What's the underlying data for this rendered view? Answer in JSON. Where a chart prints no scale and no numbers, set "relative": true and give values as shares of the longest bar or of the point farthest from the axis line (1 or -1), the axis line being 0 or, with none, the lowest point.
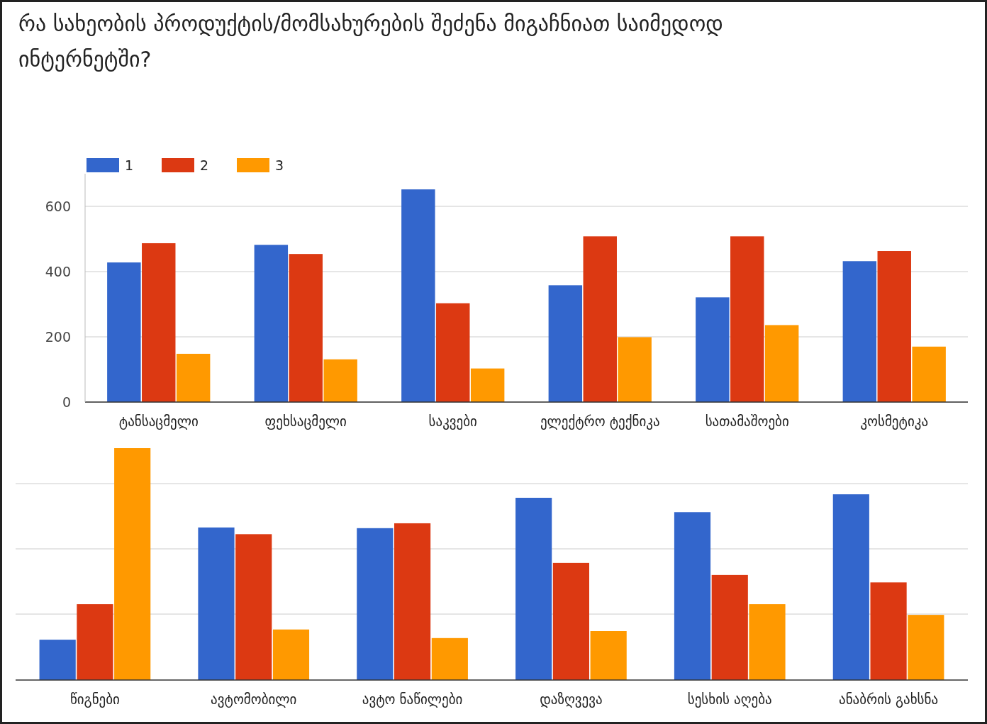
{
  "chart_data": [
    {
      "type": "bar",
      "title": "რა სახეობის პროდუქტის/მომსახურების შეძენა მიგაჩნიათ საიმედოდ ინტერნეტში?",
      "categories": [
        "ტანსაცმელი",
        "ფეხსაცმელი",
        "საკვები",
        "ელექტრო ტექნიკა",
        "სათამაშოები",
        "კოსმეტიკა"
      ],
      "series": [
        {
          "name": "1",
          "color": "#3366cc",
          "values": [
            428,
            482,
            652,
            358,
            321,
            432
          ]
        },
        {
          "name": "2",
          "color": "#dc3912",
          "values": [
            487,
            454,
            303,
            508,
            508,
            463
          ]
        },
        {
          "name": "3",
          "color": "#ff9900",
          "values": [
            148,
            131,
            103,
            199,
            236,
            170
          ]
        }
      ],
      "ylim": [
        0,
        700
      ],
      "yticks": [
        0,
        200,
        400,
        600
      ],
      "grid": "y",
      "legend": "top left"
    },
    {
      "type": "bar",
      "relative": true,
      "categories": [
        "წიგნები",
        "ავტომობილი",
        "ავტო ნაწილები",
        "დაზღვევა",
        "სესხის აღება",
        "ანაბრის გახსნა"
      ],
      "series": [
        {
          "color": "#3366cc",
          "values": [
            0.174,
            0.658,
            0.655,
            0.786,
            0.724,
            0.801
          ]
        },
        {
          "color": "#dc3912",
          "values": [
            0.327,
            0.629,
            0.676,
            0.505,
            0.453,
            0.421
          ]
        },
        {
          "color": "#ff9900",
          "values": [
            1,
            0.218,
            0.181,
            0.211,
            0.327,
            0.281
          ]
        }
      ],
      "grid": "y"
    }
  ]
}
